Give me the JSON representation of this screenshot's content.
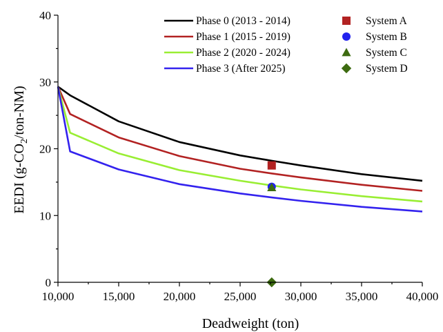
{
  "chart_data": {
    "type": "line",
    "title": "",
    "xlabel": "Deadweight (ton)",
    "ylabel_main": "EEDI (g-CO",
    "ylabel_sub": "2",
    "ylabel_tail": "/ton-NM)",
    "xlim": [
      10000,
      40000
    ],
    "ylim": [
      0,
      40
    ],
    "x_ticks": [
      10000,
      15000,
      20000,
      25000,
      30000,
      35000,
      40000
    ],
    "x_tick_labels": [
      "10,000",
      "15,000",
      "20,000",
      "25,000",
      "30,000",
      "35,000",
      "40,000"
    ],
    "y_ticks": [
      0,
      10,
      20,
      30,
      40
    ],
    "y_tick_labels": [
      "0",
      "10",
      "20",
      "30",
      "40"
    ],
    "grid": false,
    "legend_position": "top-right",
    "series": [
      {
        "name": "Phase 0 (2013 - 2014)",
        "color": "#000000",
        "points": [
          [
            10000,
            29.3
          ],
          [
            11000,
            28.0
          ],
          [
            15000,
            24.1
          ],
          [
            20000,
            21.0
          ],
          [
            25000,
            19.0
          ],
          [
            27600,
            18.2
          ],
          [
            30000,
            17.5
          ],
          [
            35000,
            16.2
          ],
          [
            40000,
            15.2
          ]
        ]
      },
      {
        "name": "Phase 1 (2015 - 2019)",
        "color": "#b22222",
        "points": [
          [
            10000,
            29.3
          ],
          [
            11000,
            25.2
          ],
          [
            15000,
            21.7
          ],
          [
            20000,
            18.9
          ],
          [
            25000,
            17.0
          ],
          [
            27600,
            16.3
          ],
          [
            30000,
            15.7
          ],
          [
            35000,
            14.6
          ],
          [
            40000,
            13.7
          ]
        ]
      },
      {
        "name": "Phase 2 (2020 - 2024)",
        "color": "#99ee33",
        "points": [
          [
            10000,
            29.3
          ],
          [
            11000,
            22.4
          ],
          [
            15000,
            19.3
          ],
          [
            20000,
            16.8
          ],
          [
            25000,
            15.2
          ],
          [
            27600,
            14.5
          ],
          [
            30000,
            13.9
          ],
          [
            35000,
            12.9
          ],
          [
            40000,
            12.1
          ]
        ]
      },
      {
        "name": "Phase 3 (After 2025)",
        "color": "#3322ee",
        "points": [
          [
            10000,
            29.3
          ],
          [
            11000,
            19.6
          ],
          [
            15000,
            16.9
          ],
          [
            20000,
            14.7
          ],
          [
            25000,
            13.3
          ],
          [
            27600,
            12.7
          ],
          [
            30000,
            12.2
          ],
          [
            35000,
            11.3
          ],
          [
            40000,
            10.6
          ]
        ]
      }
    ],
    "systems": [
      {
        "name": "System A",
        "marker": "square",
        "color": "#b22222",
        "x": 27600,
        "y": 17.5
      },
      {
        "name": "System B",
        "marker": "circle",
        "color": "#2222ee",
        "x": 27600,
        "y": 14.3
      },
      {
        "name": "System C",
        "marker": "triangle",
        "color": "#3d6b10",
        "x": 27600,
        "y": 14.2
      },
      {
        "name": "System D",
        "marker": "diamond",
        "color": "#3d6b10",
        "x": 27600,
        "y": 0
      }
    ]
  }
}
